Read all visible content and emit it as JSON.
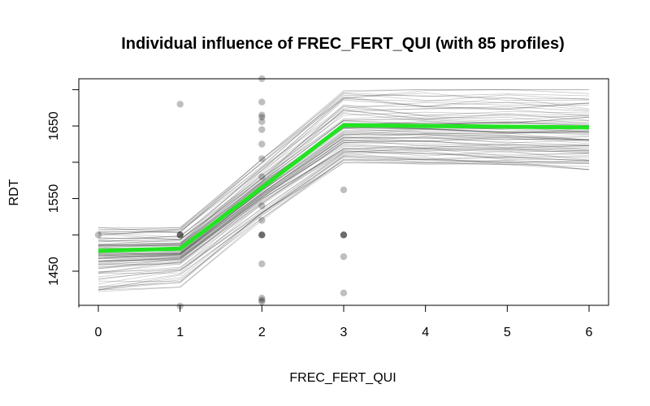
{
  "chart_data": {
    "type": "line",
    "title": "Individual influence of FREC_FERT_QUI (with 85 profiles)",
    "xlabel": "FREC_FERT_QUI",
    "ylabel": "RDT",
    "xlim": [
      0,
      6
    ],
    "ylim": [
      1403,
      1715
    ],
    "x_ticks": [
      0,
      1,
      2,
      3,
      4,
      5,
      6
    ],
    "y_ticks": [
      1450,
      1550,
      1650
    ],
    "x": [
      0,
      1,
      2,
      3,
      4,
      5,
      6
    ],
    "profile_count": 85,
    "profile_stats": {
      "min": [
        1418,
        1428,
        1520,
        1598,
        1597,
        1594,
        1590
      ],
      "q25": [
        1458,
        1465,
        1550,
        1622,
        1621,
        1618,
        1616
      ],
      "median": [
        1473,
        1475,
        1562,
        1643,
        1642,
        1640,
        1638
      ],
      "q75": [
        1487,
        1487,
        1575,
        1660,
        1659,
        1657,
        1655
      ],
      "max": [
        1510,
        1510,
        1605,
        1700,
        1700,
        1700,
        1700
      ]
    },
    "series": [
      {
        "values": [
          1478,
          1481,
          1565,
          1651,
          1650,
          1649,
          1648
        ]
      }
    ],
    "observations": [
      {
        "x": 0,
        "y": 1500
      },
      {
        "x": 1,
        "y": 1680
      },
      {
        "x": 1,
        "y": 1500
      },
      {
        "x": 1,
        "y": 1500
      },
      {
        "x": 1,
        "y": 1500
      },
      {
        "x": 1,
        "y": 1402
      },
      {
        "x": 2,
        "y": 1715
      },
      {
        "x": 2,
        "y": 1683
      },
      {
        "x": 2,
        "y": 1665
      },
      {
        "x": 2,
        "y": 1662
      },
      {
        "x": 2,
        "y": 1656
      },
      {
        "x": 2,
        "y": 1645
      },
      {
        "x": 2,
        "y": 1625
      },
      {
        "x": 2,
        "y": 1605
      },
      {
        "x": 2,
        "y": 1580
      },
      {
        "x": 2,
        "y": 1540
      },
      {
        "x": 2,
        "y": 1520
      },
      {
        "x": 2,
        "y": 1500
      },
      {
        "x": 2,
        "y": 1500
      },
      {
        "x": 2,
        "y": 1500
      },
      {
        "x": 2,
        "y": 1460
      },
      {
        "x": 2,
        "y": 1413
      },
      {
        "x": 2,
        "y": 1410
      },
      {
        "x": 2,
        "y": 1408
      },
      {
        "x": 3,
        "y": 1562
      },
      {
        "x": 3,
        "y": 1500
      },
      {
        "x": 3,
        "y": 1500
      },
      {
        "x": 3,
        "y": 1500
      },
      {
        "x": 3,
        "y": 1470
      },
      {
        "x": 3,
        "y": 1420
      }
    ],
    "colors": {
      "profile": "#000000",
      "mean": "#22e422",
      "point": "#000000"
    },
    "grid": false,
    "legend": "none"
  }
}
